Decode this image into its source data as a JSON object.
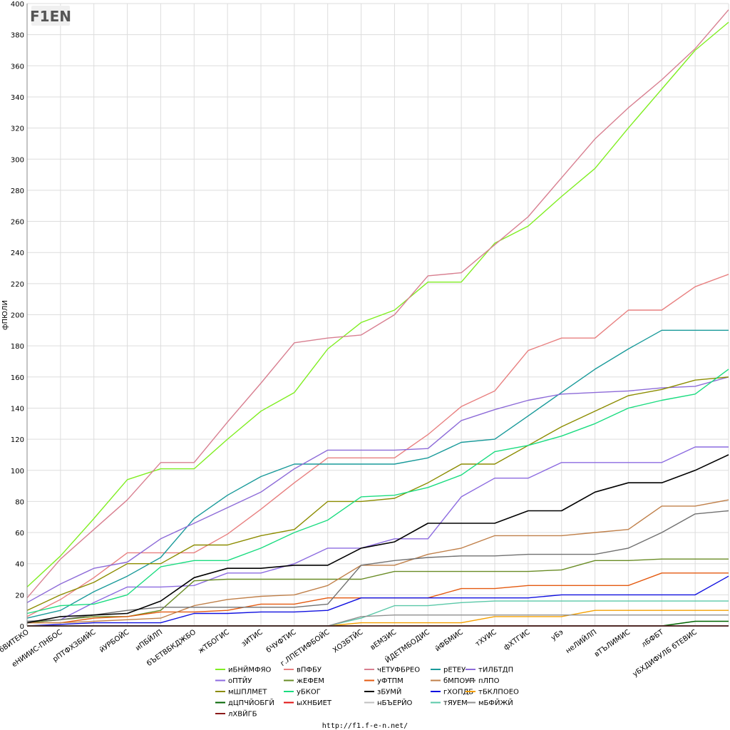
{
  "logo_text": "F1EN",
  "footer": "http://f1.f-e-n.net/",
  "chart_data": {
    "type": "line",
    "ylabel": "фПЮЛИ",
    "ylim": [
      0,
      400
    ],
    "ytick_step": 20,
    "grid": true,
    "legend_position": "bottom",
    "categories": [
      "бВИТЕКО",
      "еНИИИС-ПНБОС",
      "рПТФХЗБИЙС",
      "йУРБОЙС",
      "иПБЙЛП",
      "бЪЕТВБКДЖБО",
      "жТБОГИС",
      "зИТИС",
      "бЧУФТИС",
      "г.ЛПЕТИФБОЙС",
      "ХОЗБТЙС",
      "вЕМЗИС",
      "ЙДЕТМБОДИС",
      "йФБМИС",
      "тХУИС",
      "фХТГИС",
      "уБэ",
      "неЛИЙЛП",
      "вТЪЛИМИС",
      "лБФБТ",
      "уБХДИФУЛБ бТЕВИС",
      ""
    ],
    "series": [
      {
        "name": "иБНЙМФЯО",
        "color": "#80ee22",
        "values": [
          25,
          45,
          69,
          94,
          101,
          101,
          120,
          138,
          150,
          178,
          195,
          203,
          221,
          221,
          246,
          257,
          276,
          294,
          320,
          345,
          370,
          388
        ]
      },
      {
        "name": "вПФБУ",
        "color": "#e88080",
        "values": [
          6,
          17,
          31,
          47,
          47,
          47,
          59,
          75,
          92,
          108,
          108,
          108,
          123,
          141,
          151,
          177,
          185,
          185,
          203,
          203,
          218,
          226
        ]
      },
      {
        "name": "чЕТУФБРЕО",
        "color": "#d87f90",
        "values": [
          18,
          43,
          62,
          81,
          105,
          105,
          131,
          156,
          182,
          185,
          187,
          200,
          225,
          227,
          245,
          263,
          288,
          313,
          333,
          351,
          371,
          396
        ]
      },
      {
        "name": "рЕТЕУ",
        "color": "#199a9a",
        "values": [
          5,
          10,
          22,
          32,
          44,
          69,
          84,
          96,
          104,
          104,
          104,
          104,
          108,
          118,
          120,
          135,
          150,
          165,
          178,
          190,
          190,
          190
        ]
      },
      {
        "name": "тИЛБТДП",
        "color": "#8d6bd8",
        "values": [
          15,
          27,
          37,
          41,
          56,
          66,
          76,
          86,
          101,
          113,
          113,
          113,
          114,
          132,
          139,
          145,
          149,
          150,
          151,
          153,
          154,
          160
        ]
      },
      {
        "name": "оПТЙУ",
        "color": "#8c6be0",
        "values": [
          2,
          4,
          15,
          25,
          25,
          26,
          34,
          34,
          40,
          50,
          50,
          56,
          56,
          83,
          95,
          95,
          105,
          105,
          105,
          105,
          115,
          115
        ]
      },
      {
        "name": "жЕФЕМ",
        "color": "#698c25",
        "values": [
          2,
          4,
          6,
          6,
          10,
          29,
          30,
          30,
          30,
          30,
          30,
          35,
          35,
          35,
          35,
          35,
          36,
          42,
          42,
          43,
          43,
          43
        ]
      },
      {
        "name": "уФТПМ",
        "color": "#e45a10",
        "values": [
          2,
          2,
          5,
          6,
          9,
          9,
          10,
          14,
          14,
          18,
          18,
          18,
          18,
          24,
          24,
          26,
          26,
          26,
          26,
          34,
          34,
          34
        ]
      },
      {
        "name": "бМПОУП",
        "color": "#c0804a",
        "values": [
          2,
          2,
          3,
          4,
          5,
          13,
          17,
          19,
          20,
          26,
          39,
          39,
          46,
          50,
          58,
          58,
          58,
          60,
          62,
          77,
          77,
          81
        ]
      },
      {
        "name": "пЛПО",
        "color": "#707070",
        "values": [
          3,
          4,
          7,
          10,
          12,
          12,
          12,
          12,
          12,
          14,
          39,
          42,
          44,
          45,
          45,
          46,
          46,
          46,
          50,
          60,
          72,
          74
        ]
      },
      {
        "name": "мШПЛМЕТ",
        "color": "#8c8c00",
        "values": [
          10,
          20,
          28,
          40,
          40,
          52,
          52,
          58,
          62,
          80,
          80,
          82,
          92,
          104,
          104,
          116,
          128,
          138,
          148,
          152,
          158,
          160
        ]
      },
      {
        "name": "уБКОГ",
        "color": "#1adc80",
        "values": [
          8,
          13,
          14,
          20,
          38,
          42,
          42,
          50,
          60,
          68,
          83,
          84,
          89,
          97,
          112,
          116,
          122,
          130,
          140,
          145,
          149,
          165
        ]
      },
      {
        "name": "зБУМЙ",
        "color": "#000000",
        "values": [
          2,
          6,
          7,
          8,
          16,
          31,
          37,
          37,
          39,
          39,
          50,
          54,
          66,
          66,
          66,
          74,
          74,
          86,
          92,
          92,
          100,
          110
        ]
      },
      {
        "name": "гХОПДБ",
        "color": "#1010e0",
        "values": [
          0,
          1,
          2,
          2,
          2,
          8,
          8,
          9,
          9,
          10,
          18,
          18,
          18,
          18,
          18,
          18,
          20,
          20,
          20,
          20,
          20,
          32
        ]
      },
      {
        "name": "тБКЛПОЕО",
        "color": "#f5a000",
        "values": [
          0,
          0,
          0,
          0,
          0,
          0,
          0,
          0,
          0,
          0,
          2,
          2,
          2,
          2,
          6,
          6,
          6,
          10,
          10,
          10,
          10,
          10
        ]
      },
      {
        "name": "дЦПЧЙОБГЙ",
        "color": "#006400",
        "values": [
          0,
          0,
          0,
          0,
          0,
          0,
          0,
          0,
          0,
          0,
          0,
          0,
          0,
          0,
          0,
          0,
          0,
          0,
          0,
          0,
          3,
          3
        ]
      },
      {
        "name": "ыХНБИЕТ",
        "color": "#e01010",
        "values": [
          0,
          0,
          0,
          0,
          0,
          0,
          0,
          0,
          0,
          0,
          0,
          0,
          0,
          0,
          0,
          0,
          0,
          0,
          0,
          0,
          0,
          0
        ]
      },
      {
        "name": "нБЪЕРЙО",
        "color": "#c0c0c0",
        "values": [
          0,
          0,
          0,
          0,
          0,
          0,
          0,
          0,
          0,
          0,
          0,
          0,
          0,
          0,
          0,
          0,
          0,
          0,
          0,
          0,
          0,
          0
        ]
      },
      {
        "name": "тЯУЕМ",
        "color": "#5ac8a8",
        "values": [
          0,
          0,
          0,
          0,
          0,
          0,
          0,
          0,
          0,
          0,
          5,
          13,
          13,
          15,
          16,
          16,
          16,
          16,
          16,
          16,
          16,
          16
        ]
      },
      {
        "name": "мБФЙЖЙ",
        "color": "#909090",
        "values": [
          0,
          0,
          0,
          0,
          0,
          0,
          0,
          0,
          0,
          0,
          6,
          7,
          7,
          7,
          7,
          7,
          7,
          7,
          7,
          7,
          7,
          7
        ]
      },
      {
        "name": "лХВЙГБ",
        "color": "#8b1a1a",
        "values": [
          0,
          0,
          0,
          0,
          0,
          0,
          0,
          0,
          0,
          0,
          0,
          0,
          0,
          0,
          0,
          0,
          0,
          0,
          0,
          0,
          0,
          0
        ]
      }
    ]
  }
}
